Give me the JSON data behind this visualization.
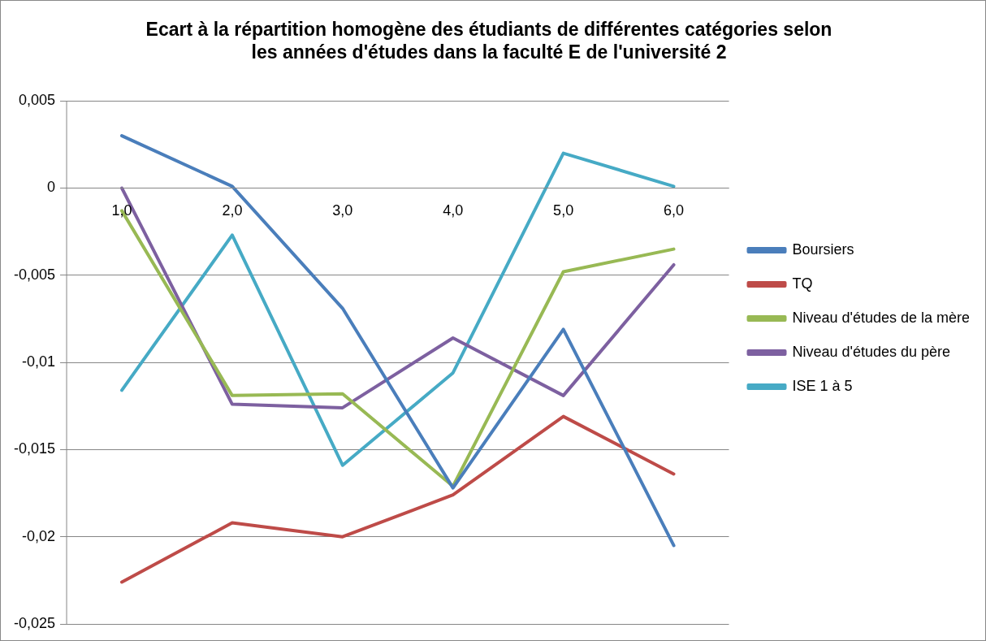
{
  "chart_data": {
    "type": "line",
    "title": "Ecart à la répartition homogène des étudiants de différentes catégories selon les années d'études dans la faculté E de l'université 2",
    "categories": [
      "1,0",
      "2,0",
      "3,0",
      "4,0",
      "5,0",
      "6,0"
    ],
    "series": [
      {
        "name": "Boursiers",
        "color": "#4a7ebb",
        "values": [
          0.003,
          0.0001,
          -0.0069,
          -0.0172,
          -0.0081,
          -0.0205
        ]
      },
      {
        "name": "TQ",
        "color": "#be4b48",
        "values": [
          -0.0226,
          -0.0192,
          -0.02,
          -0.0176,
          -0.0131,
          -0.0164
        ]
      },
      {
        "name": "Niveau d'études de la mère",
        "color": "#98b954",
        "values": [
          -0.0013,
          -0.0119,
          -0.0118,
          -0.0171,
          -0.0048,
          -0.0035
        ]
      },
      {
        "name": "Niveau d'études du père",
        "color": "#7d60a0",
        "values": [
          0,
          -0.0124,
          -0.0126,
          -0.0086,
          -0.0119,
          -0.0044
        ]
      },
      {
        "name": "ISE 1 à 5",
        "color": "#46aac5",
        "values": [
          -0.0116,
          -0.0027,
          -0.0159,
          -0.0106,
          0.002,
          0.0001
        ]
      }
    ],
    "ylim": [
      -0.025,
      0.005
    ],
    "yticks": [
      {
        "value": 0.005,
        "label": "0,005"
      },
      0,
      {
        "value": -0.005,
        "label": "-0,005"
      },
      {
        "value": -0.01,
        "label": "-0,01"
      },
      {
        "value": -0.015,
        "label": "-0,015"
      },
      {
        "value": -0.02,
        "label": "-0,02"
      },
      {
        "value": -0.025,
        "label": "-0,025"
      }
    ],
    "grid": "y",
    "legend": "right",
    "marker": "none",
    "line_style": "solid"
  }
}
